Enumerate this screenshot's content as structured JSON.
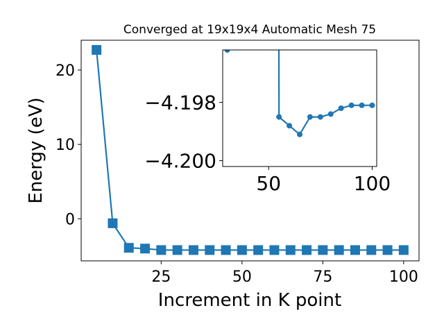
{
  "chart_data": [
    {
      "type": "line",
      "title": "Converged at 19x19x4 Automatic Mesh 75",
      "xlabel": "Increment in K point",
      "ylabel": "Energy (eV)",
      "xlim": [
        0.25,
        104.75
      ],
      "ylim": [
        -5.65,
        24.0
      ],
      "xticks": [
        25,
        50,
        75,
        100
      ],
      "yticks": [
        0,
        10,
        20
      ],
      "marker": "square",
      "color": "#1f77b4",
      "grid": false,
      "x": [
        5,
        10,
        15,
        20,
        25,
        30,
        35,
        40,
        45,
        50,
        55,
        60,
        65,
        70,
        75,
        80,
        85,
        90,
        95,
        100
      ],
      "values": [
        22.7,
        -0.6,
        -3.9,
        -4.0,
        -4.2,
        -4.2,
        -4.2,
        -4.2,
        -4.2,
        -4.2,
        -4.2,
        -4.2,
        -4.2,
        -4.2,
        -4.2,
        -4.2,
        -4.2,
        -4.2,
        -4.2,
        -4.2
      ]
    },
    {
      "type": "line",
      "inset": true,
      "xlabel": "",
      "ylabel": "",
      "xlim": [
        27.8,
        102.2
      ],
      "ylim": [
        -4.2002,
        -4.1962
      ],
      "xticks": [
        50,
        100
      ],
      "yticks": [
        -4.2,
        -4.198
      ],
      "yticklabels": [
        "−4.200",
        "−4.198"
      ],
      "marker": "circle",
      "color": "#1f77b4",
      "grid": false,
      "x": [
        30,
        55,
        60,
        65,
        70,
        75,
        80,
        85,
        90,
        95,
        100
      ],
      "values": [
        -4.1962,
        -4.1985,
        -4.1988,
        -4.1991,
        -4.1985,
        -4.1985,
        -4.1984,
        -4.1982,
        -4.1981,
        -4.1981,
        -4.1981
      ],
      "boundary_segments": [
        {
          "from": [
            30,
            -4.1962
          ],
          "to_outside": [
            32,
            -4.1
          ]
        },
        {
          "from_outside": [
            53,
            -4.1
          ],
          "to": [
            55,
            -4.1985
          ]
        }
      ]
    }
  ]
}
